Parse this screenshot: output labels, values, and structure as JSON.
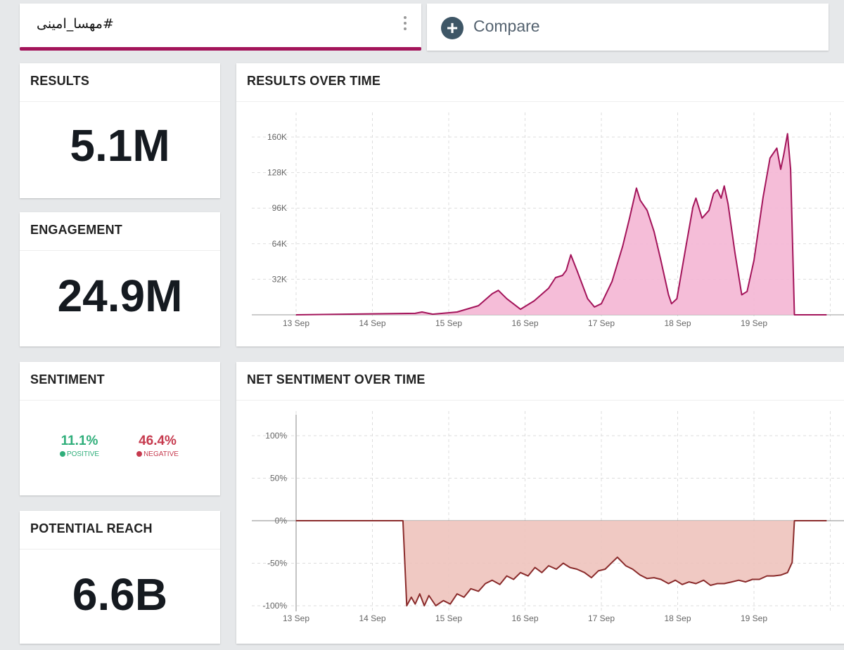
{
  "header": {
    "query_tab": "#مهسا_امینی",
    "compare_label": "Compare"
  },
  "colors": {
    "accent": "#a3145a",
    "area": "#f4b6d4",
    "positive": "#2fae7a",
    "negative": "#c63a4e",
    "sentiment_area": "#eec3bd",
    "sentiment_line": "#8a2b2b",
    "zero_line": "#3d8c3d"
  },
  "cards": {
    "results": {
      "title": "RESULTS",
      "value": "5.1M"
    },
    "engagement": {
      "title": "ENGAGEMENT",
      "value": "24.9M"
    },
    "sentiment": {
      "title": "SENTIMENT",
      "positive_value": "11.1%",
      "positive_label": "POSITIVE",
      "negative_value": "46.4%",
      "negative_label": "NEGATIVE"
    },
    "reach": {
      "title": "POTENTIAL REACH",
      "value": "6.6B"
    }
  },
  "chart_data": [
    {
      "type": "area",
      "title": "RESULTS OVER TIME",
      "xlabel": "",
      "ylabel": "",
      "x_ticks": [
        "13 Sep",
        "14 Sep",
        "15 Sep",
        "16 Sep",
        "17 Sep",
        "18 Sep",
        "19 Sep"
      ],
      "y_ticks": [
        "32K",
        "64K",
        "96K",
        "128K",
        "160K"
      ],
      "y_tick_values": [
        32,
        64,
        96,
        128,
        160
      ],
      "ylim": [
        0,
        160
      ],
      "x_unit": "days since 13 Sep",
      "y_unit": "K results",
      "grid": true,
      "x": [
        0,
        1.56,
        1.65,
        1.79,
        2.11,
        2.39,
        2.57,
        2.65,
        2.76,
        2.94,
        3.12,
        3.31,
        3.4,
        3.49,
        3.54,
        3.6,
        3.68,
        3.82,
        3.91,
        4.0,
        4.14,
        4.28,
        4.37,
        4.46,
        4.51,
        4.6,
        4.69,
        4.78,
        4.88,
        4.92,
        4.99,
        5.11,
        5.2,
        5.24,
        5.32,
        5.41,
        5.47,
        5.52,
        5.57,
        5.61,
        5.66,
        5.75,
        5.84,
        5.91,
        6.0,
        6.12,
        6.21,
        6.3,
        6.35,
        6.39,
        6.44,
        6.48,
        6.53,
        6.95
      ],
      "y": [
        0,
        1.3,
        2.5,
        0.6,
        2.5,
        8.2,
        19,
        22,
        14.5,
        5,
        12.6,
        24,
        33.5,
        35.4,
        40,
        54,
        40,
        14.5,
        7,
        10,
        30,
        62,
        87,
        114,
        103,
        94,
        75,
        49,
        18,
        10,
        14.5,
        62,
        97,
        105,
        87,
        94,
        109,
        112.5,
        105,
        116,
        100,
        56,
        18,
        21,
        49,
        106,
        141,
        150,
        131,
        144,
        163,
        131,
        0,
        0
      ]
    },
    {
      "type": "area",
      "title": "NET SENTIMENT OVER TIME",
      "xlabel": "",
      "ylabel": "",
      "x_ticks": [
        "13 Sep",
        "14 Sep",
        "15 Sep",
        "16 Sep",
        "17 Sep",
        "18 Sep",
        "19 Sep"
      ],
      "y_ticks": [
        "100%",
        "50%",
        "0%",
        "-50%",
        "-100%"
      ],
      "y_tick_values": [
        100,
        50,
        0,
        -50,
        -100
      ],
      "ylim": [
        -100,
        100
      ],
      "x_unit": "days since 13 Sep",
      "y_unit": "%",
      "grid": true,
      "x": [
        0,
        1.4,
        1.45,
        1.51,
        1.56,
        1.62,
        1.68,
        1.74,
        1.83,
        1.93,
        2.02,
        2.11,
        2.2,
        2.29,
        2.39,
        2.48,
        2.57,
        2.67,
        2.76,
        2.85,
        2.94,
        3.04,
        3.13,
        3.22,
        3.31,
        3.41,
        3.5,
        3.59,
        3.68,
        3.78,
        3.87,
        3.96,
        4.05,
        4.14,
        4.21,
        4.32,
        4.41,
        4.51,
        4.6,
        4.69,
        4.78,
        4.88,
        4.97,
        5.06,
        5.15,
        5.24,
        5.34,
        5.43,
        5.52,
        5.61,
        5.71,
        5.8,
        5.89,
        5.98,
        6.07,
        6.17,
        6.26,
        6.35,
        6.44,
        6.5,
        6.53,
        6.95
      ],
      "y": [
        0,
        0,
        -100,
        -90,
        -98,
        -86,
        -100,
        -88,
        -100,
        -94,
        -98,
        -86,
        -90,
        -80,
        -83,
        -74,
        -70,
        -75,
        -65,
        -69,
        -61,
        -65,
        -55,
        -61,
        -53,
        -57,
        -50,
        -55,
        -57,
        -61,
        -67,
        -59,
        -57,
        -49,
        -43,
        -53,
        -57,
        -64,
        -68,
        -67,
        -69,
        -74,
        -70,
        -75,
        -72,
        -74,
        -70,
        -76,
        -74,
        -74,
        -72,
        -70,
        -72,
        -69,
        -69,
        -65,
        -65,
        -64,
        -61,
        -49,
        0,
        0
      ]
    }
  ]
}
